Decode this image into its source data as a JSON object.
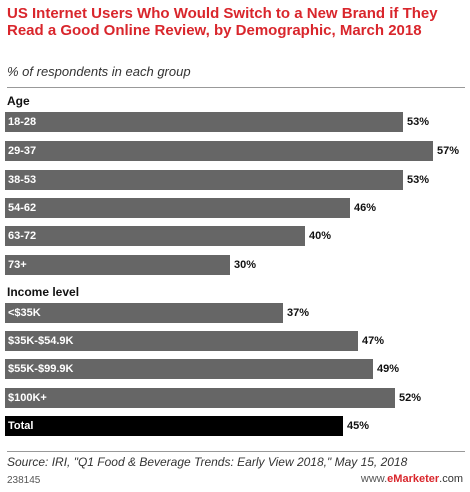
{
  "chart_data": {
    "type": "bar",
    "title": "US Internet Users Who Would Switch to a New Brand if They Read a Good Online Review, by Demographic, March 2018",
    "subtitle": "% of respondents in each group",
    "xlim": [
      0,
      57
    ],
    "groups": [
      {
        "name": "Age",
        "categories": [
          "18-28",
          "29-37",
          "38-53",
          "54-62",
          "63-72",
          "73+"
        ],
        "values": [
          53,
          57,
          53,
          46,
          40,
          30
        ],
        "value_labels": [
          "53%",
          "57%",
          "53%",
          "46%",
          "40%",
          "30%"
        ]
      },
      {
        "name": "Income level",
        "categories": [
          "<$35K",
          "$35K-$54.9K",
          "$55K-$99.9K",
          "$100K+"
        ],
        "values": [
          37,
          47,
          49,
          52
        ],
        "value_labels": [
          "37%",
          "47%",
          "49%",
          "52%"
        ]
      },
      {
        "name": "",
        "categories": [
          "Total"
        ],
        "values": [
          45
        ],
        "value_labels": [
          "45%"
        ],
        "highlight": true
      }
    ],
    "colors": {
      "bar": "#666666",
      "total_bar": "#000000",
      "title": "#d9262c"
    }
  },
  "footer": {
    "source": "Source: IRI, \"Q1 Food & Beverage Trends: Early View 2018,\" May 15, 2018",
    "chart_id": "238145",
    "brand_prefix": "www.",
    "brand_name": "eMarketer",
    "brand_suffix": ".com"
  }
}
